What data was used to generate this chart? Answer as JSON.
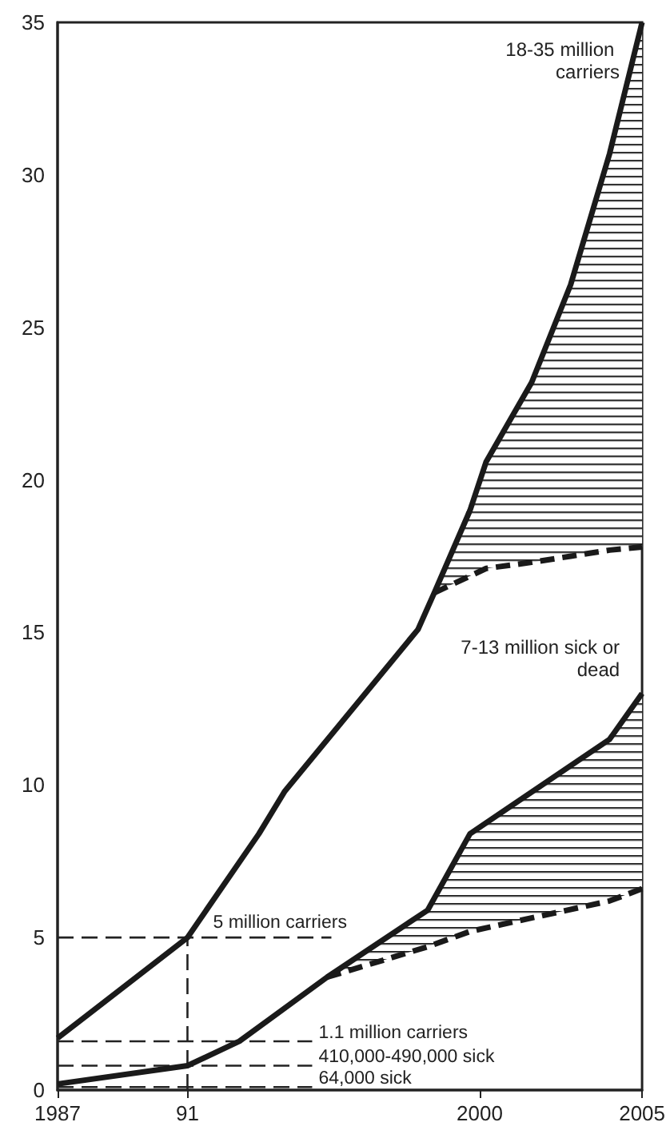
{
  "chart_data": {
    "type": "line",
    "xlim": [
      1987,
      2005
    ],
    "xticks": [
      1987,
      {
        "value": 1991,
        "label": "91"
      },
      2000,
      2005
    ],
    "ylim": [
      0,
      35
    ],
    "yticks": [
      0,
      5,
      10,
      15,
      20,
      25,
      30,
      35
    ],
    "grid": false,
    "marker": "none",
    "ref_lines": [
      {
        "axis": "x",
        "value": 1991,
        "line_style": "dashed"
      },
      {
        "axis": "y",
        "value": 5.0,
        "label": "5 million carriers",
        "line_style": "dashed"
      },
      {
        "axis": "y",
        "value": 1.6,
        "label": "1.1 million carriers",
        "line_style": "dashed"
      },
      {
        "axis": "y",
        "value": 0.8,
        "label": "410,000-490,000 sick",
        "line_style": "dashed"
      },
      {
        "axis": "y",
        "value": 0.1,
        "label": "64,000 sick",
        "line_style": "dashed"
      }
    ],
    "series": [
      {
        "color": "#1a1a1a",
        "line_style": "solid",
        "x": [
          1987,
          1991,
          1993.2,
          1994.0,
          1998.1,
          1998.6,
          1999.7,
          2000.2,
          2001.6,
          2002.8,
          2004.0,
          2005
        ],
        "values": [
          1.7,
          5.0,
          8.4,
          9.8,
          15.1,
          16.3,
          19.0,
          20.6,
          23.2,
          26.4,
          30.7,
          35
        ]
      },
      {
        "color": "#1a1a1a",
        "line_style": "dashed",
        "x": [
          1998.6,
          2000.2,
          2001.6,
          2002.8,
          2004.0,
          2005
        ],
        "values": [
          16.3,
          17.1,
          17.3,
          17.5,
          17.7,
          17.8
        ],
        "lower": [
          16.3,
          17.1,
          17.3,
          17.5,
          17.7,
          17.8
        ],
        "upper": [
          16.3,
          20.6,
          23.2,
          26.4,
          30.7,
          35
        ]
      },
      {
        "color": "#1a1a1a",
        "line_style": "solid",
        "x": [
          1987,
          1991,
          1992.6,
          1995.3,
          1998.4,
          1999.7,
          2004.0,
          2005
        ],
        "values": [
          0.2,
          0.8,
          1.6,
          3.7,
          5.9,
          8.4,
          11.5,
          13.0
        ]
      },
      {
        "color": "#1a1a1a",
        "line_style": "dashed",
        "x": [
          1995.3,
          1998.4,
          1999.7,
          2004.0,
          2005
        ],
        "values": [
          3.7,
          4.7,
          5.2,
          6.2,
          6.6
        ],
        "lower": [
          3.7,
          4.7,
          5.2,
          6.2,
          6.6
        ],
        "upper": [
          3.7,
          5.9,
          8.4,
          11.5,
          13.0
        ]
      }
    ],
    "annotations": [
      {
        "text": "18-35 million carriers",
        "x": 2005,
        "y": 35
      },
      {
        "text": "7-13 million sick or dead",
        "x": 2005,
        "y": 13.0
      }
    ]
  }
}
